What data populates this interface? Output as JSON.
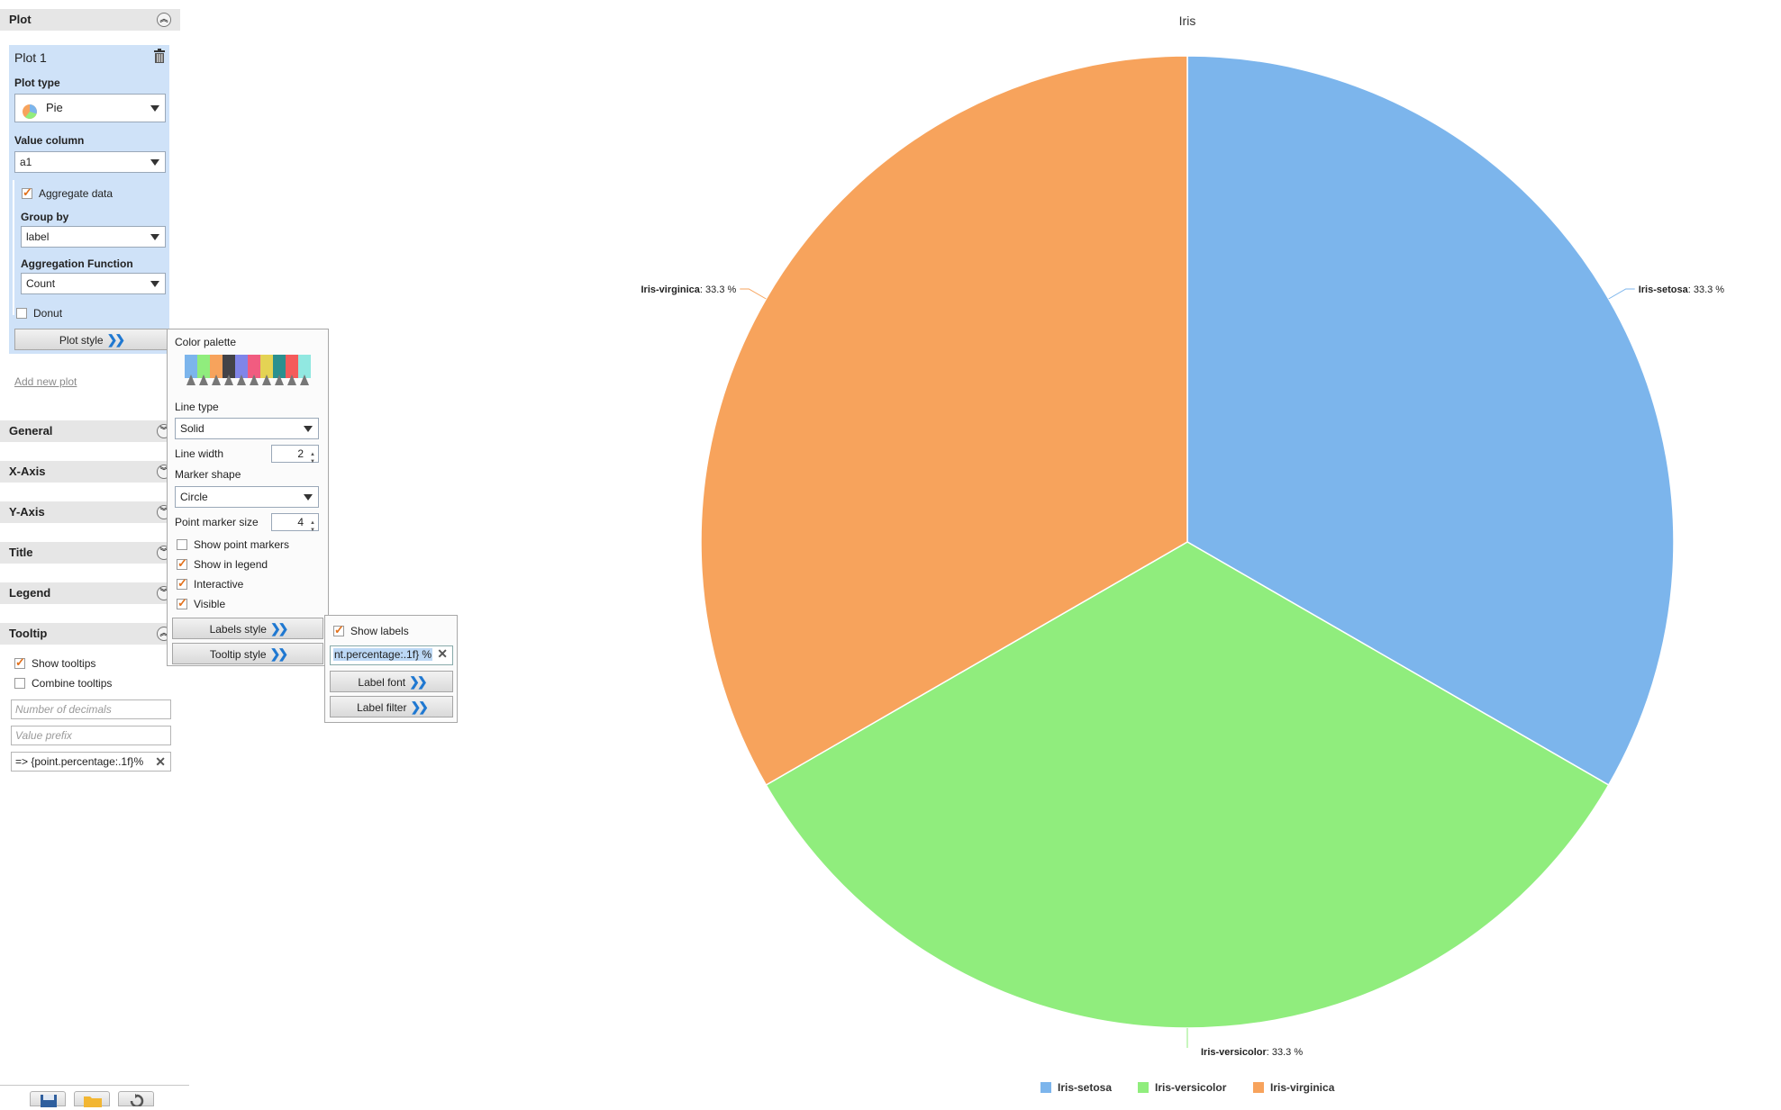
{
  "sidebar": {
    "sections": {
      "plot": "Plot",
      "general": "General",
      "xaxis": "X-Axis",
      "yaxis": "Y-Axis",
      "title": "Title",
      "legend": "Legend",
      "tooltip": "Tooltip"
    },
    "plot_card": {
      "name": "Plot 1",
      "plot_type_label": "Plot type",
      "plot_type_value": "Pie",
      "value_column_label": "Value column",
      "value_column_value": "a1",
      "aggregate_label": "Aggregate data",
      "aggregate_checked": true,
      "group_by_label": "Group by",
      "group_by_value": "label",
      "agg_function_label": "Aggregation Function",
      "agg_function_value": "Count",
      "donut_label": "Donut",
      "donut_checked": false,
      "plot_style_button": "Plot style"
    },
    "add_new_plot": "Add new plot",
    "tooltip": {
      "show_tooltips_label": "Show tooltips",
      "show_tooltips_checked": true,
      "combine_tooltips_label": "Combine tooltips",
      "combine_tooltips_checked": false,
      "decimals_placeholder": "Number of decimals",
      "prefix_placeholder": "Value prefix",
      "format_value": "=> {point.percentage:.1f}%"
    },
    "toolbar_icons": [
      "save-icon",
      "folder-icon",
      "refresh-icon"
    ]
  },
  "plot_style_popup": {
    "color_palette_label": "Color palette",
    "palette_colors": [
      "#7cb5ec",
      "#90ed7d",
      "#f7a35c",
      "#434348",
      "#8085e9",
      "#f15c80",
      "#e4d354",
      "#2b908f",
      "#f45b5b",
      "#91e8e1"
    ],
    "line_type_label": "Line type",
    "line_type_value": "Solid",
    "line_width_label": "Line width",
    "line_width_value": "2",
    "marker_shape_label": "Marker shape",
    "marker_shape_value": "Circle",
    "point_marker_size_label": "Point marker size",
    "point_marker_size_value": "4",
    "show_point_markers_label": "Show point markers",
    "show_point_markers_checked": false,
    "show_in_legend_label": "Show in legend",
    "show_in_legend_checked": true,
    "interactive_label": "Interactive",
    "interactive_checked": true,
    "visible_label": "Visible",
    "visible_checked": true,
    "labels_style_button": "Labels style",
    "tooltip_style_button": "Tooltip style"
  },
  "labels_style_popup": {
    "show_labels_label": "Show labels",
    "show_labels_checked": true,
    "format_value": "nt.percentage:.1f} %",
    "label_font_button": "Label font",
    "label_filter_button": "Label filter"
  },
  "chart_data": {
    "type": "pie",
    "title": "Iris",
    "categories": [
      "Iris-setosa",
      "Iris-versicolor",
      "Iris-virginica"
    ],
    "values": [
      33.3,
      33.3,
      33.3
    ],
    "data_labels": [
      "33.3 %",
      "33.3 %",
      "33.3 %"
    ],
    "colors": [
      "#7cb5ec",
      "#90ed7d",
      "#f7a35c"
    ],
    "legend_position": "bottom"
  }
}
